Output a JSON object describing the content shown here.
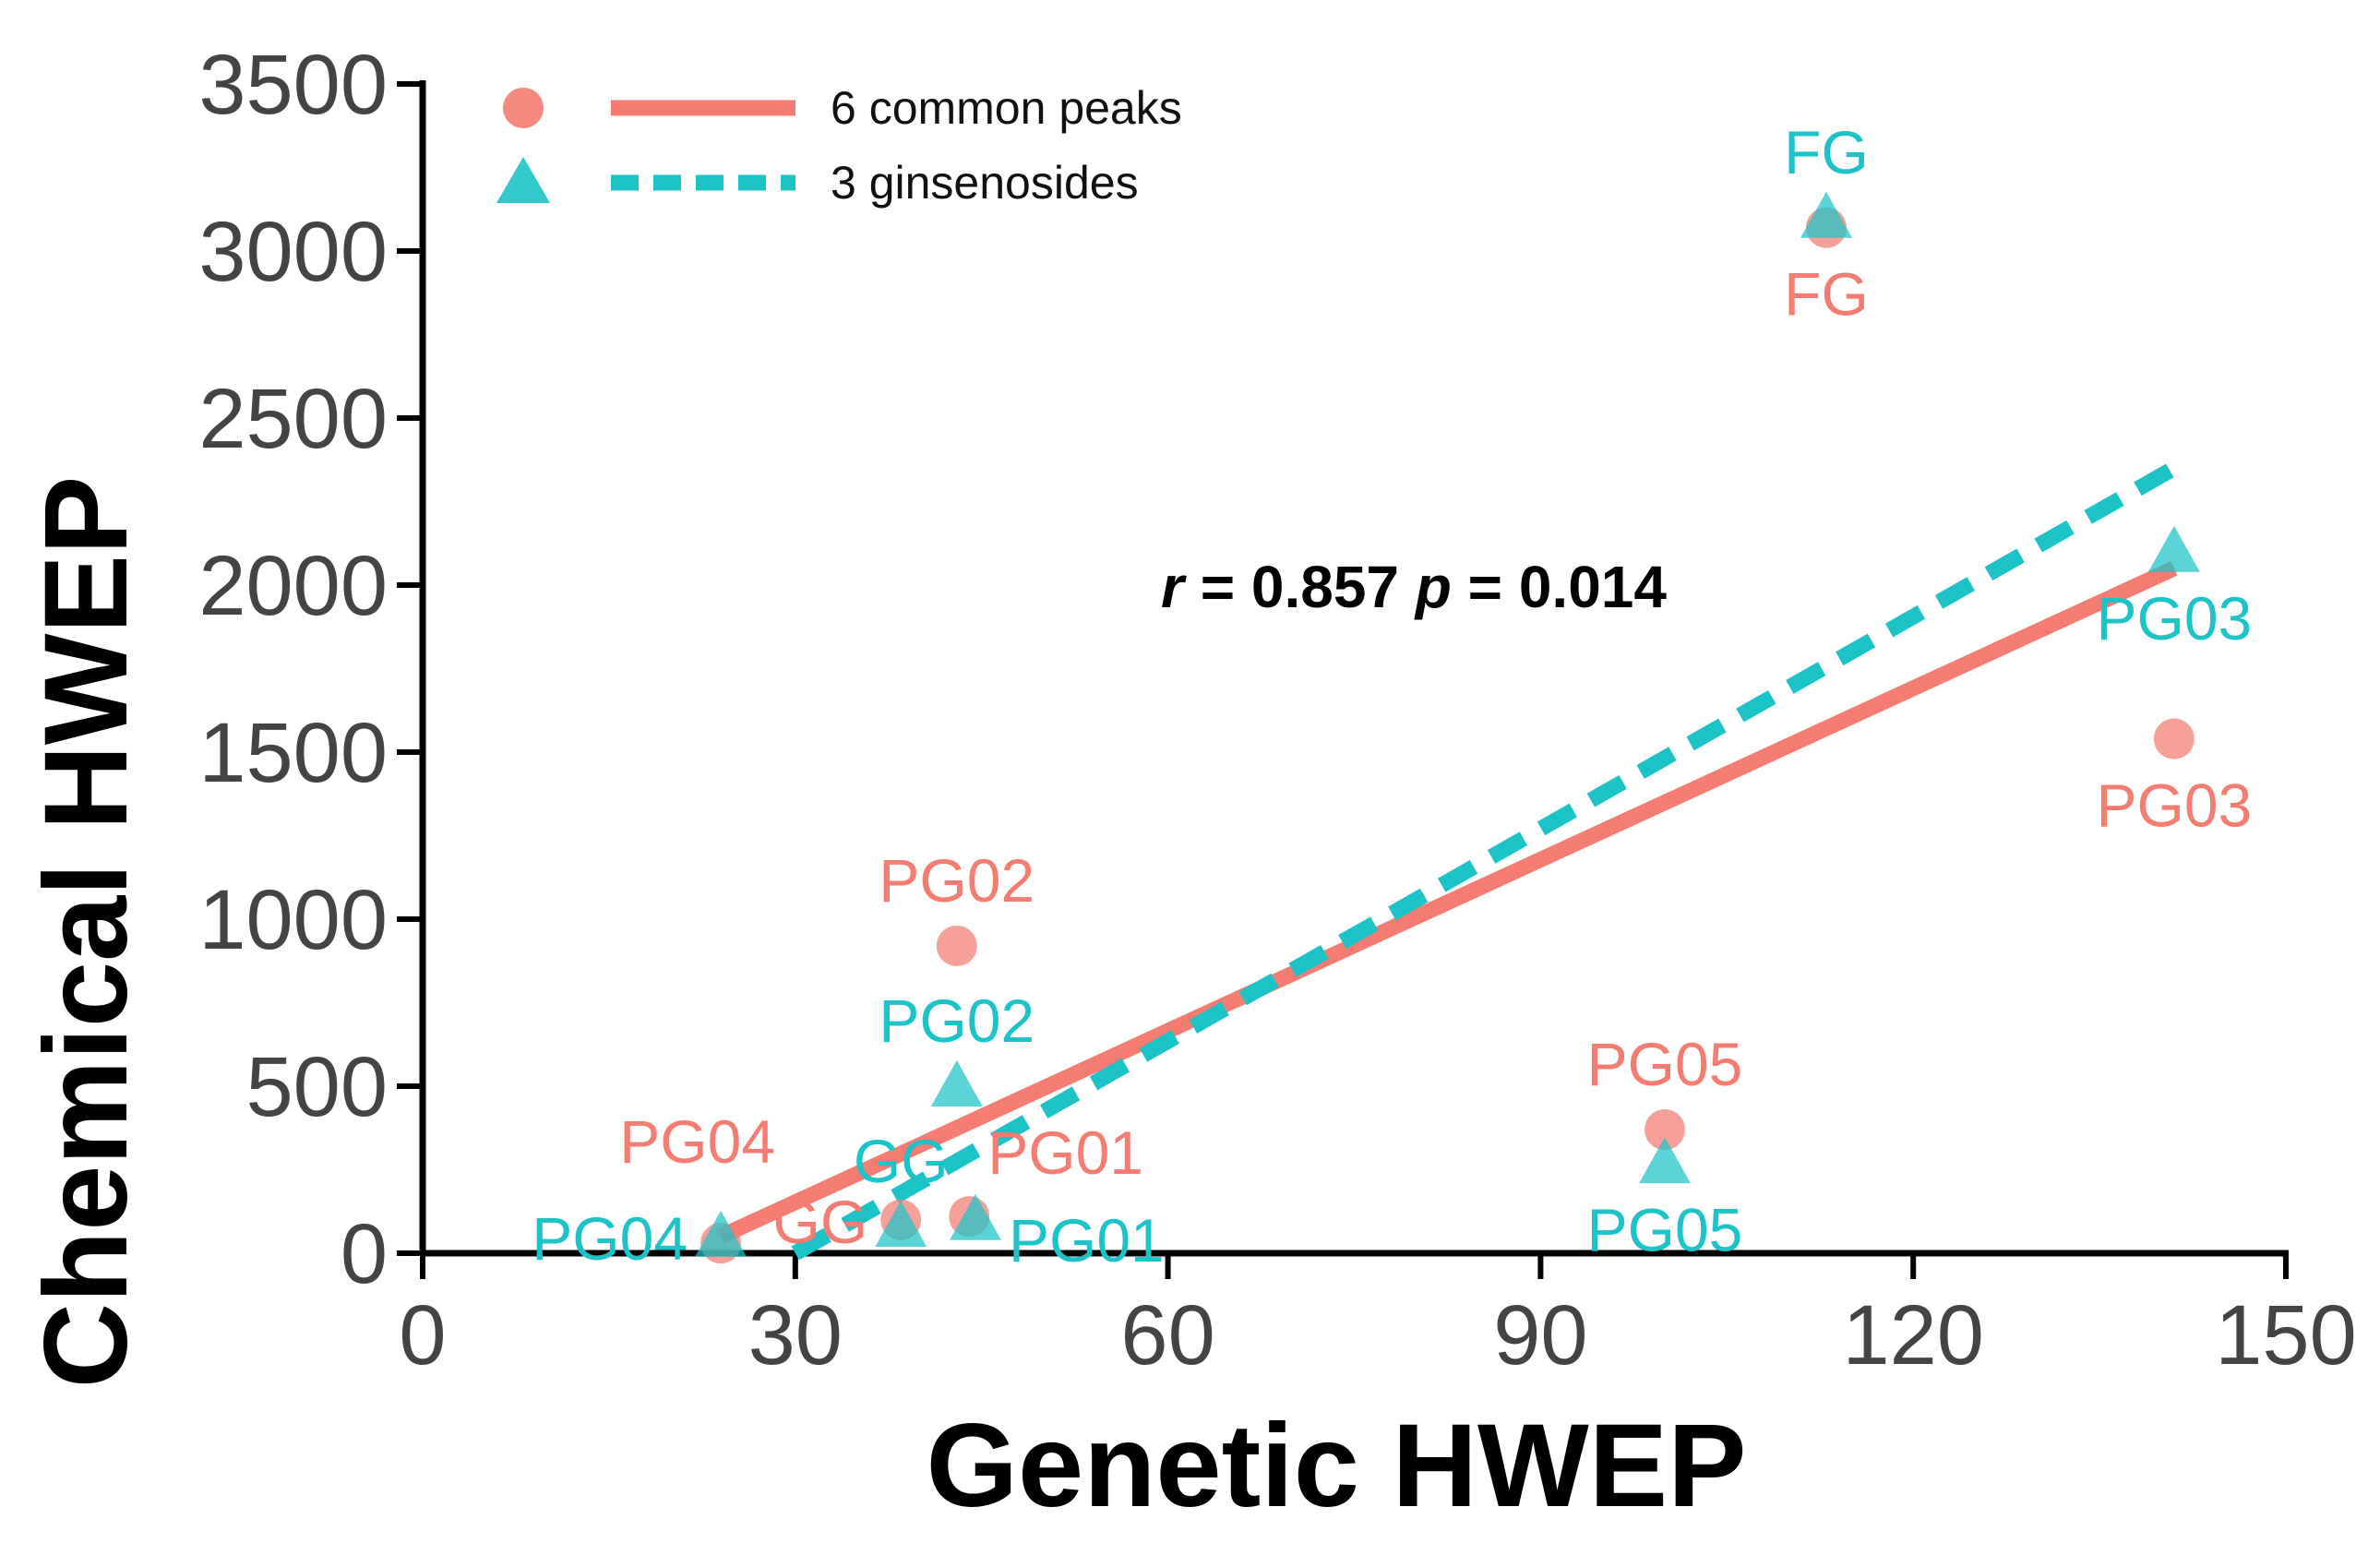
{
  "chart_data": {
    "type": "scatter",
    "xlabel": "Genetic HWEP",
    "ylabel": "Chemical HWEP",
    "xlim": [
      0,
      150
    ],
    "ylim": [
      0,
      3500
    ],
    "xticks": [
      0,
      30,
      60,
      90,
      120,
      150
    ],
    "yticks": [
      0,
      500,
      1000,
      1500,
      2000,
      2500,
      3000,
      3500
    ],
    "xtick_labels": [
      "0",
      "30",
      "60",
      "90",
      "120",
      "150"
    ],
    "ytick_labels": [
      "0",
      "500",
      "1000",
      "1500",
      "2000",
      "2500",
      "3000",
      "3500"
    ],
    "grid": false,
    "legend_position": "top-left",
    "stats": {
      "r_symbol": "r",
      "r_text": " = 0.857 ",
      "p_symbol": "p",
      "p_text": " = 0.014"
    },
    "series": [
      {
        "name": "6 common peaks",
        "color": "#F47C72",
        "marker": "circle",
        "line": "solid",
        "fit": {
          "x": [
            24,
            141
          ],
          "y": [
            50,
            2050
          ]
        },
        "points": [
          {
            "label": "FG",
            "x": 113,
            "y": 3070,
            "label_pos": "below"
          },
          {
            "label": "PG03",
            "x": 141,
            "y": 1540,
            "label_pos": "below"
          },
          {
            "label": "PG02",
            "x": 43,
            "y": 920,
            "label_pos": "above"
          },
          {
            "label": "PG05",
            "x": 100,
            "y": 370,
            "label_pos": "above"
          },
          {
            "label": "PG04",
            "x": 24,
            "y": 30,
            "label_pos": "above-left"
          },
          {
            "label": "GG",
            "x": 38.5,
            "y": 100,
            "label_pos": "left"
          },
          {
            "label": "PG01",
            "x": 44,
            "y": 110,
            "label_pos": "above-right"
          }
        ]
      },
      {
        "name": "3 ginsenosides",
        "color": "#1CC3C7",
        "marker": "triangle",
        "line": "dashed",
        "fit": {
          "x": [
            30,
            141
          ],
          "y": [
            0,
            2350
          ]
        },
        "points": [
          {
            "label": "FG",
            "x": 113,
            "y": 3100,
            "label_pos": "above"
          },
          {
            "label": "PG03",
            "x": 141,
            "y": 2100,
            "label_pos": "below"
          },
          {
            "label": "PG02",
            "x": 43,
            "y": 500,
            "label_pos": "above"
          },
          {
            "label": "PG05",
            "x": 100,
            "y": 270,
            "label_pos": "below"
          },
          {
            "label": "PG04",
            "x": 24,
            "y": 50,
            "label_pos": "left"
          },
          {
            "label": "GG",
            "x": 38.5,
            "y": 80,
            "label_pos": "above"
          },
          {
            "label": "PG01",
            "x": 44.5,
            "y": 100,
            "label_pos": "right"
          }
        ]
      }
    ]
  }
}
